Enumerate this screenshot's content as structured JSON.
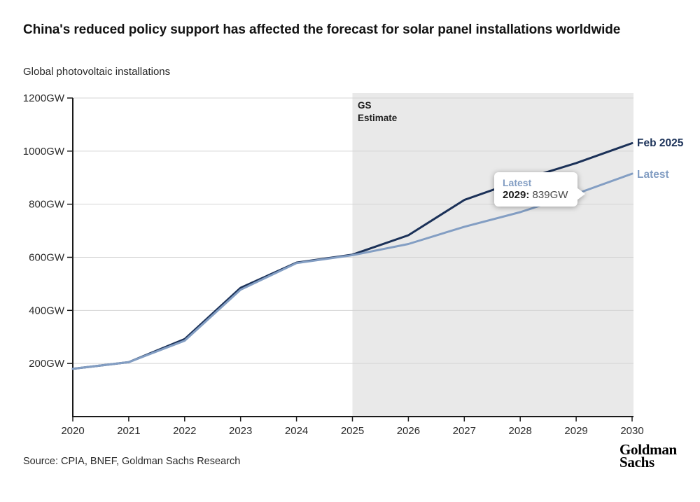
{
  "header": {
    "title": "China's reduced policy support has affected the forecast for solar panel installations worldwide",
    "subtitle": "Global photovoltaic installations"
  },
  "chart_data": {
    "type": "line",
    "title": "Global photovoltaic installations",
    "xlabel": "",
    "ylabel": "",
    "unit": "GW",
    "x": [
      2020,
      2021,
      2022,
      2023,
      2024,
      2025,
      2026,
      2027,
      2028,
      2029,
      2030
    ],
    "x_tick_labels": [
      "2020",
      "2021",
      "2022",
      "2023",
      "2024",
      "2025",
      "2026",
      "2027",
      "2028",
      "2029",
      "2030"
    ],
    "ylim": [
      0,
      1200
    ],
    "y_ticks": [
      {
        "value": 200,
        "label": "200GW"
      },
      {
        "value": 400,
        "label": "400GW"
      },
      {
        "value": 600,
        "label": "600GW"
      },
      {
        "value": 800,
        "label": "800GW"
      },
      {
        "value": 1000,
        "label": "1000GW"
      },
      {
        "value": 1200,
        "label": "1200GW"
      }
    ],
    "grid": true,
    "legend_position": "line-end-labels",
    "series": [
      {
        "name": "Feb 2025",
        "color": "#1B3158",
        "values": [
          180,
          205,
          292,
          485,
          580,
          610,
          683,
          816,
          890,
          955,
          1030
        ]
      },
      {
        "name": "Latest",
        "color": "#839EC3",
        "values": [
          180,
          205,
          286,
          478,
          578,
          608,
          650,
          715,
          770,
          839,
          915
        ]
      }
    ],
    "estimate_region": {
      "label": "GS\nEstimate",
      "from": 2025,
      "to": 2030,
      "fill": "#E9E9E9"
    }
  },
  "tooltip": {
    "series_label": "Latest",
    "year_label": "2029:",
    "value": "839GW"
  },
  "footer": {
    "source": "Source: CPIA, BNEF, Goldman Sachs Research",
    "logo_line1": "Goldman",
    "logo_line2": "Sachs"
  },
  "colors": {
    "accent_dark": "#1B3158",
    "accent_light": "#839EC3",
    "shade": "#E9E9E9",
    "grid": "#D4D4D4",
    "axis": "#1A1A1A"
  }
}
